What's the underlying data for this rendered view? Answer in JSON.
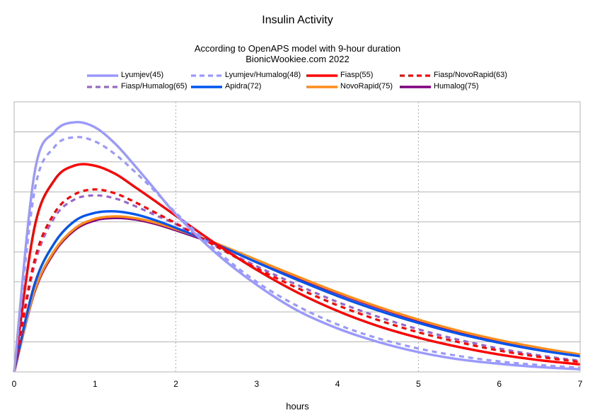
{
  "chart_data": {
    "type": "line",
    "title": "Insulin Activity",
    "subtitle_lines": [
      "According to OpenAPS model with 9-hour duration",
      "BionicWookiee.com 2022"
    ],
    "xlabel": "hours",
    "ylabel": "",
    "xlim": [
      0,
      7
    ],
    "x_ticks": [
      "0",
      "1",
      "2",
      "3",
      "4",
      "5",
      "6",
      "7"
    ],
    "y_grid_lines": 9,
    "x_grid_dashed_at": [
      2,
      5
    ],
    "grid": true,
    "legend_position": "top",
    "x": [
      0,
      0.25,
      0.5,
      0.75,
      1,
      1.25,
      1.5,
      1.75,
      2,
      2.5,
      3,
      3.5,
      4,
      4.5,
      5,
      5.5,
      6,
      6.5,
      7
    ],
    "series": [
      {
        "name": "Lyumjev(45)",
        "color": "#9999ff",
        "style": "solid",
        "values": [
          0,
          0.66,
          0.8,
          0.832,
          0.815,
          0.76,
          0.685,
          0.605,
          0.525,
          0.395,
          0.29,
          0.205,
          0.145,
          0.1,
          0.066,
          0.042,
          0.027,
          0.016,
          0.009
        ]
      },
      {
        "name": "Lyumjev/Humalog(48)",
        "color": "#9999ff",
        "style": "dashed",
        "values": [
          0,
          0.6,
          0.75,
          0.782,
          0.768,
          0.725,
          0.665,
          0.6,
          0.53,
          0.405,
          0.3,
          0.22,
          0.158,
          0.112,
          0.078,
          0.053,
          0.035,
          0.023,
          0.014
        ]
      },
      {
        "name": "Fiasp(55)",
        "color": "#ff0000",
        "style": "solid",
        "values": [
          0,
          0.48,
          0.64,
          0.688,
          0.687,
          0.66,
          0.615,
          0.568,
          0.52,
          0.426,
          0.34,
          0.265,
          0.203,
          0.153,
          0.114,
          0.083,
          0.058,
          0.039,
          0.025
        ]
      },
      {
        "name": "Fiasp/NovoRapid(63)",
        "color": "#ff0000",
        "style": "dashed",
        "values": [
          0,
          0.37,
          0.53,
          0.592,
          0.608,
          0.595,
          0.565,
          0.53,
          0.495,
          0.418,
          0.345,
          0.28,
          0.222,
          0.173,
          0.132,
          0.099,
          0.071,
          0.05,
          0.033
        ]
      },
      {
        "name": "Fiasp/Humalog(65)",
        "color": "#9966cc",
        "style": "dashed",
        "values": [
          0,
          0.355,
          0.515,
          0.575,
          0.588,
          0.578,
          0.552,
          0.522,
          0.492,
          0.42,
          0.352,
          0.29,
          0.233,
          0.184,
          0.142,
          0.107,
          0.078,
          0.055,
          0.037
        ]
      },
      {
        "name": "Apidra(72)",
        "color": "#0055ee",
        "style": "solid",
        "values": [
          0,
          0.29,
          0.43,
          0.503,
          0.53,
          0.535,
          0.525,
          0.505,
          0.48,
          0.425,
          0.365,
          0.307,
          0.253,
          0.205,
          0.163,
          0.127,
          0.097,
          0.072,
          0.052
        ]
      },
      {
        "name": "NovoRapid(75)",
        "color": "#ff8c1a",
        "style": "solid",
        "values": [
          0,
          0.27,
          0.405,
          0.478,
          0.51,
          0.518,
          0.512,
          0.497,
          0.476,
          0.428,
          0.373,
          0.318,
          0.265,
          0.217,
          0.174,
          0.137,
          0.106,
          0.08,
          0.058
        ]
      },
      {
        "name": "Humalog(75)",
        "color": "#800080",
        "style": "solid",
        "values": [
          0,
          0.265,
          0.4,
          0.473,
          0.505,
          0.513,
          0.508,
          0.493,
          0.472,
          0.425,
          0.37,
          0.315,
          0.262,
          0.214,
          0.171,
          0.134,
          0.103,
          0.077,
          0.055
        ]
      }
    ]
  }
}
